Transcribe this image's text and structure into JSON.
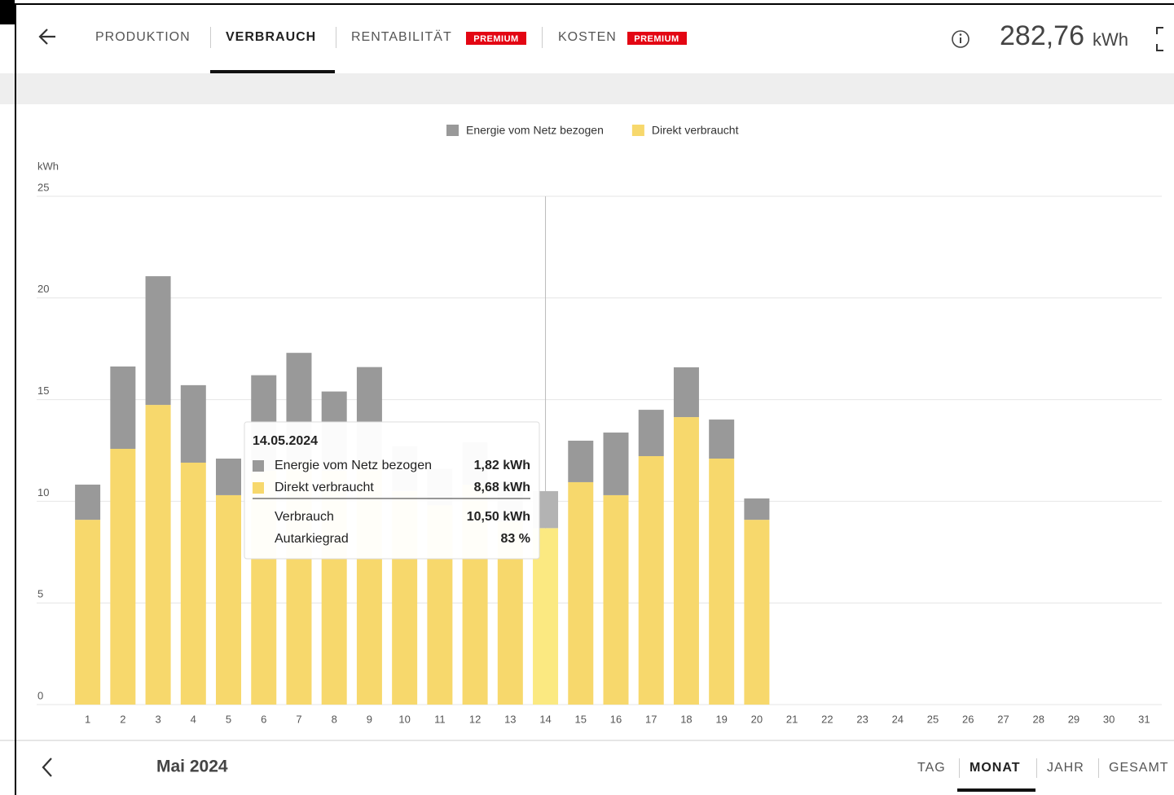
{
  "header": {
    "tabs": [
      {
        "label": "PRODUKTION"
      },
      {
        "label": "VERBRAUCH"
      },
      {
        "label": "RENTABILITÄT",
        "badge": "PREMIUM"
      },
      {
        "label": "KOSTEN",
        "badge": "PREMIUM"
      }
    ],
    "total": "282,76",
    "unit": "kWh"
  },
  "chart_data": {
    "type": "stacked_bar",
    "ylabel": "kWh",
    "categories": [
      "1",
      "2",
      "3",
      "4",
      "5",
      "6",
      "7",
      "8",
      "9",
      "10",
      "11",
      "12",
      "13",
      "14",
      "15",
      "16",
      "17",
      "18",
      "19",
      "20",
      "21",
      "22",
      "23",
      "24",
      "25",
      "26",
      "27",
      "28",
      "29",
      "30",
      "31"
    ],
    "series": [
      {
        "name": "Energie vom Netz bezogen",
        "color": "#999999",
        "highlight_color": "#b3b3b3",
        "values": [
          1.73,
          4.05,
          6.33,
          3.81,
          1.8,
          4.7,
          5.3,
          3.9,
          4.6,
          2.2,
          1.8,
          2.1,
          2.0,
          1.82,
          2.04,
          3.08,
          2.28,
          2.45,
          1.92,
          1.05,
          null,
          null,
          null,
          null,
          null,
          null,
          null,
          null,
          null,
          null,
          null
        ]
      },
      {
        "name": "Direkt verbraucht",
        "color": "#f7d86c",
        "highlight_color": "#fbe981",
        "values": [
          9.09,
          12.58,
          14.74,
          11.9,
          10.3,
          11.5,
          12.0,
          11.5,
          12.0,
          10.5,
          9.8,
          10.8,
          9.0,
          8.68,
          10.94,
          10.3,
          12.22,
          14.14,
          12.1,
          9.09,
          null,
          null,
          null,
          null,
          null,
          null,
          null,
          null,
          null,
          null,
          null
        ]
      }
    ],
    "ylim": [
      0,
      25
    ],
    "yticks": [
      0,
      5,
      10,
      15,
      20,
      25
    ],
    "grid": true,
    "legend": "top",
    "highlight": 13,
    "tooltip": {
      "title": "14.05.2024",
      "rows": [
        {
          "label": "Energie vom Netz bezogen",
          "value": "1,82 kWh"
        },
        {
          "label": "Direkt verbraucht",
          "value": "8,68 kWh"
        },
        {
          "label": "Verbrauch",
          "value": "10,50 kWh"
        },
        {
          "label": "Autarkiegrad",
          "value": "83 %"
        }
      ]
    }
  },
  "footer": {
    "period": "Mai 2024",
    "views": [
      "TAG",
      "MONAT",
      "JAHR",
      "GESAMT"
    ]
  }
}
